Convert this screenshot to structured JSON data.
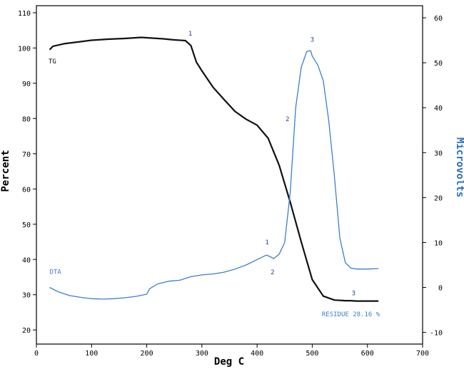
{
  "chart_data": {
    "type": "line",
    "xlabel": "Deg C",
    "ylabel_left": "Percent",
    "ylabel_right": "Microvolts",
    "xlim": [
      0,
      700
    ],
    "ylim_left": [
      16,
      112
    ],
    "ylim_right": [
      -12.6,
      62.7
    ],
    "x_ticks": [
      "0",
      "100",
      "200",
      "300",
      "400",
      "500",
      "600",
      "700"
    ],
    "y_left_ticks": [
      "20",
      "30",
      "40",
      "50",
      "60",
      "70",
      "80",
      "90",
      "100",
      "110"
    ],
    "y_right_ticks": [
      "-10",
      "0",
      "10",
      "20",
      "30",
      "40",
      "50",
      "60"
    ],
    "grid": false,
    "colors": {
      "tg": "#111111",
      "dta": "#3a7fcf",
      "axis": "#000000",
      "right_axis_label": "#2f6fb8"
    },
    "series": [
      {
        "name": "TG",
        "axis": "left",
        "x": [
          24,
          30,
          50,
          80,
          100,
          130,
          160,
          190,
          210,
          230,
          250,
          270,
          280,
          290,
          300,
          320,
          340,
          360,
          380,
          400,
          420,
          440,
          460,
          480,
          500,
          520,
          540,
          560,
          570,
          580,
          600,
          620
        ],
        "y": [
          99.5,
          100.5,
          101.2,
          101.8,
          102.2,
          102.5,
          102.7,
          103,
          102.8,
          102.6,
          102.3,
          102.1,
          100.7,
          96,
          93.5,
          88.9,
          85.4,
          82,
          79.8,
          78.1,
          74.4,
          66.7,
          56.3,
          45,
          34.3,
          29.6,
          28.5,
          28.3,
          28.3,
          28.2,
          28.2,
          28.2
        ]
      },
      {
        "name": "DTA",
        "axis": "right",
        "x": [
          24,
          40,
          60,
          80,
          100,
          120,
          140,
          160,
          180,
          200,
          205,
          220,
          240,
          260,
          280,
          300,
          320,
          340,
          360,
          380,
          400,
          417,
          423,
          430,
          440,
          450,
          460,
          470,
          480,
          490,
          497,
          500,
          510,
          520,
          530,
          540,
          550,
          560,
          570,
          580,
          600,
          620
        ],
        "y": [
          0,
          -1,
          -1.8,
          -2.2,
          -2.5,
          -2.6,
          -2.5,
          -2.3,
          -2,
          -1.5,
          -0.3,
          0.8,
          1.4,
          1.6,
          2.4,
          2.8,
          3,
          3.4,
          4.1,
          5,
          6.2,
          7.2,
          6.9,
          6.4,
          7.4,
          10,
          21,
          40,
          49,
          52.5,
          52.7,
          51.5,
          49.5,
          46,
          37,
          25,
          11,
          5.5,
          4.3,
          4.1,
          4.1,
          4.2
        ]
      }
    ],
    "series_labels": [
      {
        "text": "TG",
        "axis": "left",
        "x": 22,
        "y": 95.6
      },
      {
        "text": "DTA",
        "axis": "right",
        "x": 24,
        "y": 3
      }
    ],
    "annotations": [
      {
        "text": "1",
        "series": "TG",
        "x": 279,
        "y": 103.5
      },
      {
        "text": "2",
        "series": "TG",
        "x": 455,
        "y": 79.3
      },
      {
        "text": "1",
        "series": "DTA",
        "x": 418,
        "y": 9.6
      },
      {
        "text": "2",
        "series": "DTA",
        "x": 428,
        "y": 2.9
      },
      {
        "text": "3",
        "series": "DTA",
        "x": 500,
        "y": 54.7
      },
      {
        "text": "3",
        "series": "TG",
        "x": 575,
        "y": 29.8
      }
    ],
    "residue_label": {
      "text": "RESIDUE 28.16 %",
      "axis": "right",
      "x": 570,
      "y": -6.4
    }
  }
}
